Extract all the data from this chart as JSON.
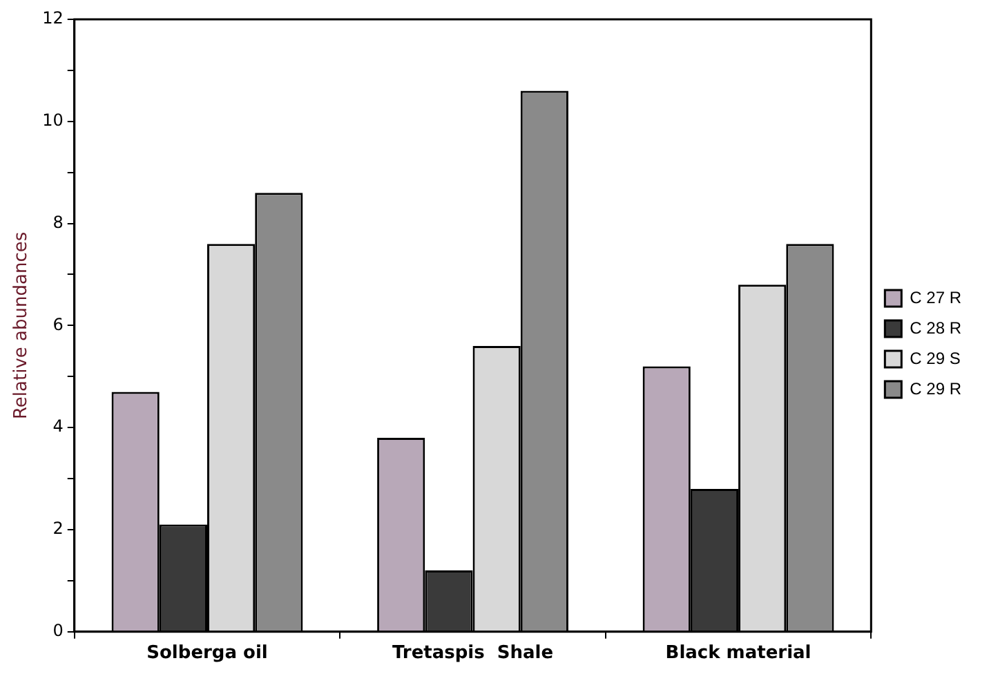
{
  "chart_data": {
    "type": "bar",
    "ylabel": "Relative abundances",
    "categories": [
      "Solberga oil",
      "Tretaspis  Shale",
      "Black material"
    ],
    "series": [
      {
        "name": "C 27 R",
        "color": "#b8a8b8",
        "values": [
          4.7,
          3.8,
          5.2
        ]
      },
      {
        "name": "C 28 R",
        "color": "#3a3a3a",
        "values": [
          2.1,
          1.2,
          2.8
        ]
      },
      {
        "name": "C 29 S",
        "color": "#d8d8d8",
        "values": [
          7.6,
          5.6,
          6.8
        ]
      },
      {
        "name": "C 29 R",
        "color": "#8a8a8a",
        "values": [
          8.6,
          10.6,
          7.6
        ]
      }
    ],
    "ylim": [
      0,
      12
    ],
    "yticks": [
      0,
      {
        "value": 1,
        "label": null
      },
      2,
      {
        "value": 3,
        "label": null
      },
      4,
      {
        "value": 5,
        "label": null
      },
      6,
      {
        "value": 7,
        "label": null
      },
      8,
      {
        "value": 9,
        "label": null
      },
      10,
      {
        "value": 11,
        "label": null
      },
      12
    ],
    "grid": false,
    "legend": "right"
  }
}
